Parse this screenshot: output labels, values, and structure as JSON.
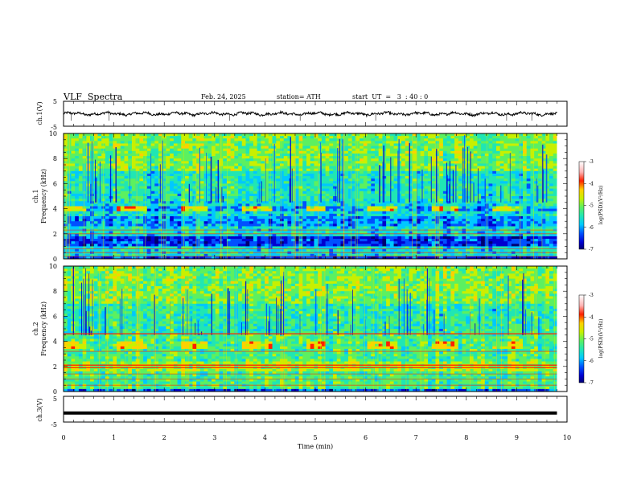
{
  "header": {
    "title": "VLF  Spectra",
    "date": "Feb. 24, 2025",
    "station": "station= ATH",
    "start_ut": "start  UT  =   3  : 40 : 0"
  },
  "colors": {
    "spectrogram_scale": [
      "#000070",
      "#0000d0",
      "#0050ff",
      "#00c8ff",
      "#20e6b4",
      "#5cf060",
      "#c8f000",
      "#ffd000",
      "#ff2000",
      "#ffb4b4",
      "#ffffff"
    ],
    "trace": "#000000"
  },
  "chart_data": [
    {
      "type": "line",
      "name": "ch1-waveform",
      "ylabel": "ch.1(V)",
      "yticks": [
        "5",
        "-5"
      ],
      "ylim": [
        -5,
        5
      ],
      "xlim": [
        0,
        10
      ],
      "x_extent": [
        0,
        9.8
      ],
      "trend": "noisy trace centered near 0 V, amplitude about ±0.6 V, sparse short downward spikes"
    },
    {
      "type": "heatmap",
      "name": "ch1-spectrogram",
      "ylabel": "ch.1\nFrequency  (kHz)",
      "yticks": [
        "0",
        "2",
        "4",
        "6",
        "8",
        "10"
      ],
      "ylim": [
        0,
        10
      ],
      "xlim": [
        0,
        10
      ],
      "x_extent": [
        0,
        9.8
      ],
      "colorbar": {
        "label": "log(PSD)(V²/Hz)",
        "range": [
          -7,
          -3
        ],
        "ticks": [
          "-3",
          "-4",
          "-5",
          "-6",
          "-7"
        ]
      },
      "features": {
        "bright_band_khz": [
          3.8,
          4.2
        ],
        "band_on_intervals_min": [
          [
            0,
            0.45
          ],
          [
            1.05,
            1.65
          ],
          [
            2.3,
            2.85
          ],
          [
            3.55,
            4.15
          ],
          [
            4.8,
            5.2
          ],
          [
            6.05,
            6.6
          ],
          [
            7.3,
            7.85
          ],
          [
            8.55,
            9.1
          ]
        ],
        "dark_band_khz": [
          1.0,
          1.8
        ],
        "horizontal_lines_khz": [
          0.2,
          0.5,
          0.8,
          2.0,
          2.3
        ]
      }
    },
    {
      "type": "heatmap",
      "name": "ch2-spectrogram",
      "ylabel": "ch.2\nFrequency  (kHz)",
      "yticks": [
        "0",
        "2",
        "4",
        "6",
        "8",
        "10"
      ],
      "ylim": [
        0,
        10
      ],
      "xlim": [
        0,
        10
      ],
      "x_extent": [
        0,
        9.8
      ],
      "colorbar": {
        "label": "log(PSD)(V²/Hz)",
        "range": [
          -7,
          -3
        ],
        "ticks": [
          "-3",
          "-4",
          "-5",
          "-6",
          "-7"
        ]
      },
      "features": {
        "bright_band_khz": [
          3.5,
          4.1
        ],
        "band_on_intervals_min": [
          [
            0,
            0.45
          ],
          [
            1.05,
            1.65
          ],
          [
            2.3,
            2.85
          ],
          [
            3.55,
            4.15
          ],
          [
            4.8,
            5.2
          ],
          [
            6.05,
            6.6
          ],
          [
            7.3,
            7.85
          ],
          [
            8.55,
            9.1
          ]
        ],
        "strong_lines_khz": [
          1.9,
          2.1,
          4.6
        ],
        "horizontal_lines_khz": [
          0.5,
          1.0,
          1.4,
          3.2
        ]
      }
    },
    {
      "type": "line",
      "name": "ch3-waveform",
      "ylabel": "ch.3(V)",
      "yticks": [
        "5",
        "-5"
      ],
      "ylim": [
        -5,
        5
      ],
      "xlim": [
        0,
        10
      ],
      "x_extent": [
        0,
        9.8
      ],
      "trend": "thick flat trace near -1.5 V"
    }
  ],
  "xaxis": {
    "label": "Time  (min)",
    "ticks": [
      "0",
      "1",
      "2",
      "3",
      "4",
      "5",
      "6",
      "7",
      "8",
      "9",
      "10"
    ],
    "range": [
      0,
      10
    ]
  }
}
